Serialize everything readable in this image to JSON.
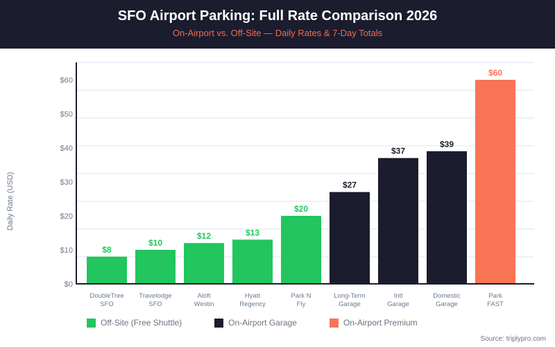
{
  "header": {
    "title": "SFO Airport Parking: Full Rate Comparison 2026",
    "subtitle": "On-Airport vs. Off-Site — Daily Rates & 7-Day Totals",
    "background_color": "#1b1c2e",
    "subtitle_color": "#f26b4f"
  },
  "chart_data": {
    "type": "bar",
    "title": "SFO Airport Parking: Full Rate Comparison 2026",
    "subtitle": "On-Airport vs. Off-Site — Daily Rates & 7-Day Totals",
    "xlabel": "",
    "ylabel": "Daily Rate (USD)",
    "ylim": [
      0,
      65
    ],
    "yticks": [
      0,
      10,
      20,
      30,
      40,
      50,
      60
    ],
    "ytick_labels": [
      "$0",
      "$10",
      "$20",
      "$30",
      "$40",
      "$50",
      "$60"
    ],
    "grid": true,
    "legend_position": "bottom-left",
    "categories": [
      [
        "DoubleTree",
        "SFO"
      ],
      [
        "Travelodge",
        "SFO"
      ],
      [
        "Aloft",
        "Westin"
      ],
      [
        "Hyatt",
        "Regency"
      ],
      [
        "Park N",
        "Fly"
      ],
      [
        "Long-Term",
        "Garage"
      ],
      [
        "Intl",
        "Garage"
      ],
      [
        "Domestic",
        "Garage"
      ],
      [
        "Park",
        "FAST"
      ]
    ],
    "values": [
      8,
      10,
      12,
      13,
      20,
      27,
      37,
      39,
      60
    ],
    "value_labels": [
      "$8",
      "$10",
      "$12",
      "$13",
      "$20",
      "$27",
      "$37",
      "$39",
      "$60"
    ],
    "groups": [
      0,
      0,
      0,
      0,
      0,
      1,
      1,
      1,
      2
    ],
    "legend": [
      {
        "name": "Off-Site (Free Shuttle)",
        "color": "#22c55e",
        "label_color": "#22c55e"
      },
      {
        "name": "On-Airport Garage",
        "color": "#1b1c2e",
        "label_color": "#1b1c2e"
      },
      {
        "name": "On-Airport Premium",
        "color": "#f87455",
        "label_color": "#f87455"
      }
    ]
  },
  "footer": {
    "source": "Source: triplypro.com"
  }
}
